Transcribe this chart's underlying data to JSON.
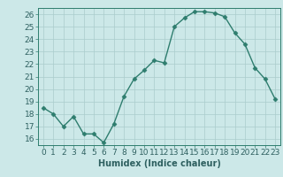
{
  "x": [
    0,
    1,
    2,
    3,
    4,
    5,
    6,
    7,
    8,
    9,
    10,
    11,
    12,
    13,
    14,
    15,
    16,
    17,
    18,
    19,
    20,
    21,
    22,
    23
  ],
  "y": [
    18.5,
    18.0,
    17.0,
    17.8,
    16.4,
    16.4,
    15.7,
    17.2,
    19.4,
    20.8,
    21.5,
    22.3,
    22.1,
    25.0,
    25.7,
    26.2,
    26.2,
    26.1,
    25.8,
    24.5,
    23.6,
    21.7,
    20.8,
    19.2
  ],
  "line_color": "#2e7d6e",
  "marker": "D",
  "markersize": 2.5,
  "linewidth": 1.0,
  "bg_color": "#cce8e8",
  "grid_color": "#aacccc",
  "xlabel": "Humidex (Indice chaleur)",
  "xlim": [
    -0.5,
    23.5
  ],
  "ylim": [
    15.5,
    26.5
  ],
  "yticks": [
    16,
    17,
    18,
    19,
    20,
    21,
    22,
    23,
    24,
    25,
    26
  ],
  "xticks": [
    0,
    1,
    2,
    3,
    4,
    5,
    6,
    7,
    8,
    9,
    10,
    11,
    12,
    13,
    14,
    15,
    16,
    17,
    18,
    19,
    20,
    21,
    22,
    23
  ],
  "xlabel_fontsize": 7,
  "tick_fontsize": 6.5
}
